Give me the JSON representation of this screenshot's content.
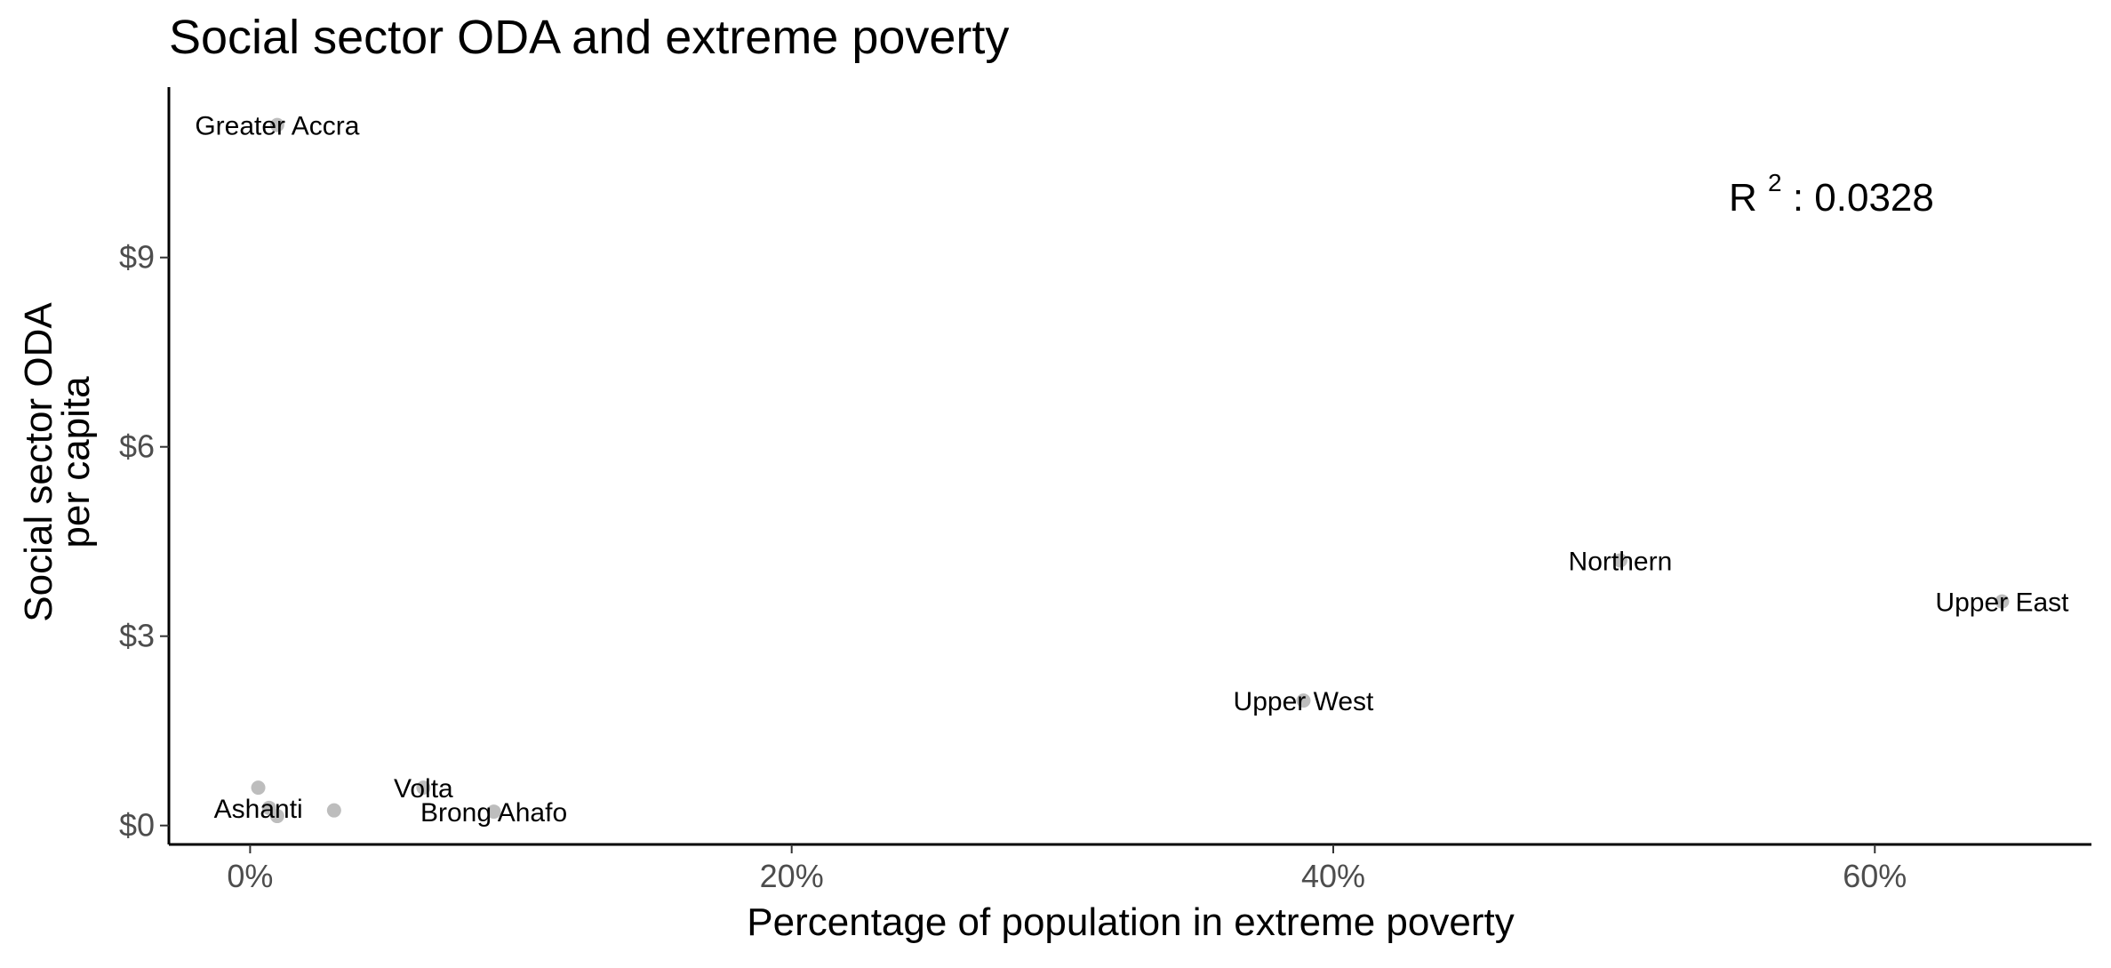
{
  "chart_data": {
    "type": "scatter",
    "title": "Social sector ODA and extreme poverty",
    "xlabel": "Percentage of population in extreme poverty",
    "ylabel": [
      "Social sector ODA",
      "per capita"
    ],
    "xlim": [
      -0.03,
      0.68
    ],
    "ylim": [
      -0.3,
      11.7
    ],
    "x_ticks": [
      0,
      0.2,
      0.4,
      0.6
    ],
    "x_tick_labels": [
      "0%",
      "20%",
      "40%",
      "60%"
    ],
    "y_ticks": [
      0,
      3,
      6,
      9
    ],
    "y_tick_labels": [
      "$0",
      "$3",
      "$6",
      "$9"
    ],
    "annotation": {
      "prefix": "R",
      "superscript": "2",
      "text": ": 0.0328"
    },
    "grid": false,
    "legend": "none",
    "point_color": "#bdbdbd",
    "points": [
      {
        "x": 0.01,
        "y": 11.1,
        "label": "Greater Accra",
        "label_pos": "center"
      },
      {
        "x": 0.506,
        "y": 4.2,
        "label": "Northern",
        "label_pos": "center"
      },
      {
        "x": 0.647,
        "y": 3.55,
        "label": "Upper East",
        "label_pos": "center"
      },
      {
        "x": 0.389,
        "y": 1.98,
        "label": "Upper West",
        "label_pos": "center"
      },
      {
        "x": 0.064,
        "y": 0.6,
        "label": "Volta",
        "label_pos": "center"
      },
      {
        "x": 0.09,
        "y": 0.22,
        "label": "Brong Ahafo",
        "label_pos": "center"
      },
      {
        "x": 0.007,
        "y": 0.28,
        "label": "Ashanti",
        "label_pos": "left"
      },
      {
        "x": 0.003,
        "y": 0.6,
        "label": "",
        "label_pos": "none"
      },
      {
        "x": 0.01,
        "y": 0.15,
        "label": "",
        "label_pos": "none"
      },
      {
        "x": 0.031,
        "y": 0.24,
        "label": "",
        "label_pos": "none"
      }
    ]
  }
}
